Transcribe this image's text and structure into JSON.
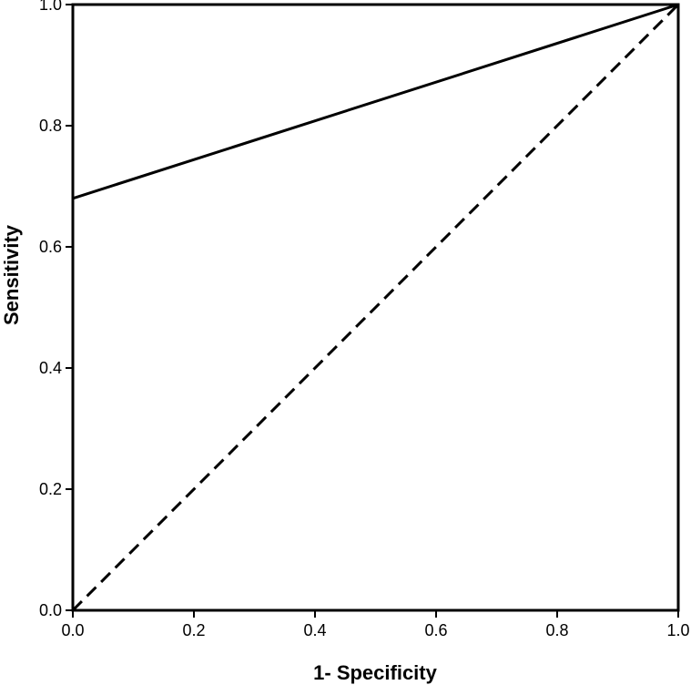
{
  "chart_data": {
    "type": "line",
    "title": "",
    "xlabel": "1- Specificity",
    "ylabel": "Sensitivity",
    "xlim": [
      0.0,
      1.0
    ],
    "ylim": [
      0.0,
      1.0
    ],
    "x_ticks": [
      "0.0",
      "0.2",
      "0.4",
      "0.6",
      "0.8",
      "1.0"
    ],
    "y_ticks": [
      "0.0",
      "0.2",
      "0.4",
      "0.6",
      "0.8",
      "1.0"
    ],
    "grid": false,
    "legend": "none",
    "series": [
      {
        "style": "solid",
        "color": "#000000",
        "x": [
          0.0,
          1.0
        ],
        "y": [
          0.68,
          1.0
        ]
      },
      {
        "style": "dashed",
        "color": "#000000",
        "x": [
          0.0,
          1.0
        ],
        "y": [
          0.0,
          1.0
        ]
      }
    ]
  }
}
